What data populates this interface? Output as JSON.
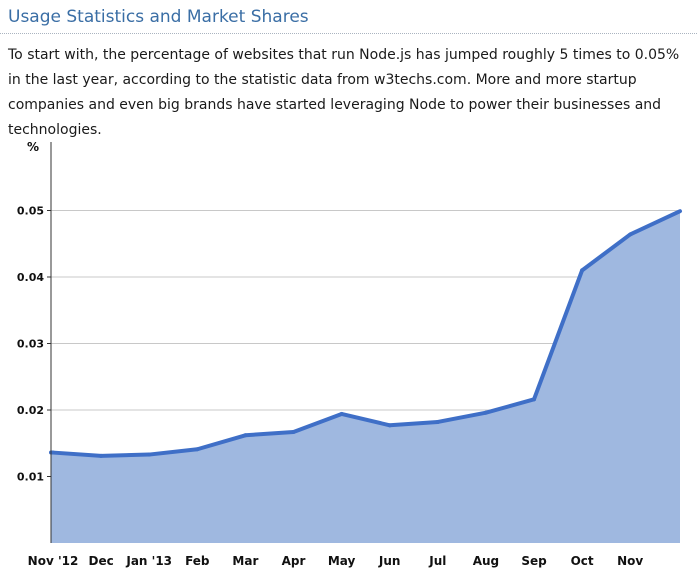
{
  "header": {
    "title": "Usage Statistics and Market Shares"
  },
  "intro": {
    "paragraph": "To start with, the percentage of websites that run Node.js has jumped roughly 5 times to 0.05% in the last year, according to the statistic data from w3techs.com. More and more startup companies and even big brands have started leveraging Node to power their businesses and technologies."
  },
  "chart_data": {
    "type": "area",
    "title": "",
    "xlabel": "",
    "ylabel": "%",
    "categories": [
      "Nov '12",
      "Dec",
      "Jan '13",
      "Feb",
      "Mar",
      "Apr",
      "May",
      "Jun",
      "Jul",
      "Aug",
      "Sep",
      "Oct",
      "Nov"
    ],
    "values": [
      0.0136,
      0.0131,
      0.0133,
      0.0141,
      0.0162,
      0.0167,
      0.0194,
      0.0177,
      0.0182,
      0.0196,
      0.0216,
      0.041,
      0.0464
    ],
    "end_value": 0.0499,
    "ylim": [
      0,
      0.06
    ],
    "yticks": [
      0.01,
      0.02,
      0.03,
      0.04,
      0.05
    ],
    "ytick_labels": [
      "0.01",
      "0.02",
      "0.03",
      "0.04",
      "0.05"
    ],
    "grid": true,
    "legend": "none",
    "colors": {
      "fill": "#9fb8e0",
      "line": "#3f6fc7",
      "grid": "#c8c8c8",
      "axis": "#333333"
    }
  }
}
